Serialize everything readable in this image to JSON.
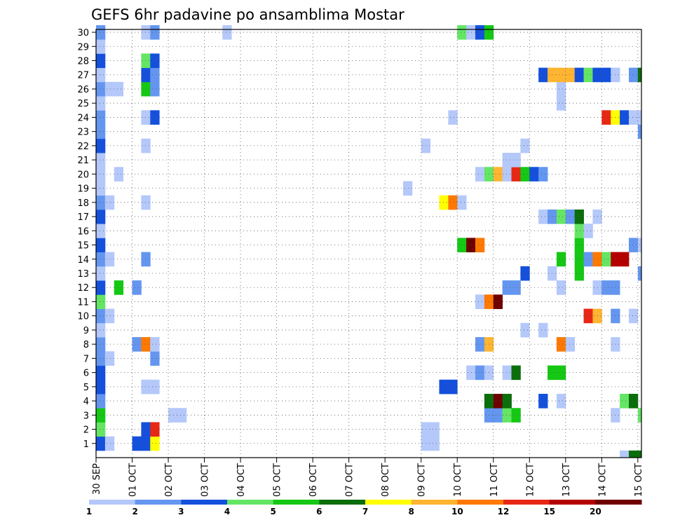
{
  "chart_data": {
    "type": "heatmap",
    "title": "GEFS 6hr padavine po ansamblima Mostar",
    "x_tick_labels": [
      "30 SEP",
      "01 OCT",
      "02 OCT",
      "03 OCT",
      "04 OCT",
      "05 OCT",
      "06 OCT",
      "07 OCT",
      "08 OCT",
      "09 OCT",
      "10 OCT",
      "11 OCT",
      "12 OCT",
      "13 OCT",
      "14 OCT",
      "15 OCT"
    ],
    "y_tick_labels": [
      1,
      2,
      3,
      4,
      5,
      6,
      7,
      8,
      9,
      10,
      11,
      12,
      13,
      14,
      15,
      16,
      17,
      18,
      19,
      20,
      21,
      22,
      23,
      24,
      25,
      26,
      27,
      28,
      29,
      30
    ],
    "ylim": [
      0,
      30
    ],
    "steps_per_day": 4,
    "grid": true,
    "legend_position": "bottom",
    "legend": {
      "labels": [
        "1",
        "2",
        "3",
        "4",
        "5",
        "6",
        "7",
        "8",
        "10",
        "12",
        "15",
        "20"
      ],
      "colors": [
        "#b4c8fa",
        "#6496f0",
        "#1450dc",
        "#64e664",
        "#14c814",
        "#0a6e0a",
        "#ffff00",
        "#ffb432",
        "#ff7800",
        "#e62814",
        "#b40000",
        "#6e0000"
      ]
    },
    "cells": [
      [
        "30 SEP",
        1
      ],
      [
        "01 OCT",
        2
      ],
      [
        "02 OCT",
        3
      ],
      [
        "03 OCT",
        4
      ],
      [
        "04 OCT",
        5
      ],
      [
        "05 OCT",
        6
      ],
      [
        "06 OCT",
        7
      ],
      [
        "07 OCT",
        8
      ],
      [
        "08 OCT",
        10
      ],
      [
        "09 OCT",
        12
      ],
      [
        "10 OCT",
        15
      ],
      [
        "11 OCT",
        20
      ]
    ],
    "data": [
      [
        0,
        1,
        "#1450dc"
      ],
      [
        0,
        2,
        "#64e664"
      ],
      [
        0,
        3,
        "#14c814"
      ],
      [
        0,
        4,
        "#6496f0"
      ],
      [
        0,
        5,
        "#1450dc"
      ],
      [
        0,
        6,
        "#1450dc"
      ],
      [
        0,
        7,
        "#6496f0"
      ],
      [
        0,
        8,
        "#6496f0"
      ],
      [
        0,
        9,
        "#b4c8fa"
      ],
      [
        0,
        10,
        "#6496f0"
      ],
      [
        0,
        11,
        "#64e664"
      ],
      [
        0,
        12,
        "#1450dc"
      ],
      [
        0,
        13,
        "#b4c8fa"
      ],
      [
        0,
        14,
        "#6496f0"
      ],
      [
        0,
        15,
        "#1450dc"
      ],
      [
        0,
        16,
        "#b4c8fa"
      ],
      [
        0,
        17,
        "#1450dc"
      ],
      [
        0,
        18,
        "#6496f0"
      ],
      [
        0,
        19,
        "#b4c8fa"
      ],
      [
        0,
        20,
        "#b4c8fa"
      ],
      [
        0,
        21,
        "#b4c8fa"
      ],
      [
        0,
        22,
        "#1450dc"
      ],
      [
        0,
        23,
        "#6496f0"
      ],
      [
        0,
        24,
        "#6496f0"
      ],
      [
        0,
        25,
        "#b4c8fa"
      ],
      [
        0,
        26,
        "#6496f0"
      ],
      [
        0,
        27,
        "#b4c8fa"
      ],
      [
        0,
        28,
        "#1450dc"
      ],
      [
        0,
        29,
        "#b4c8fa"
      ],
      [
        0,
        30,
        "#6496f0"
      ],
      [
        1,
        1,
        "#b4c8fa"
      ],
      [
        1,
        7,
        "#b4c8fa"
      ],
      [
        1,
        10,
        "#b4c8fa"
      ],
      [
        1,
        14,
        "#b4c8fa"
      ],
      [
        1,
        18,
        "#b4c8fa"
      ],
      [
        1,
        26,
        "#b4c8fa"
      ],
      [
        2,
        12,
        "#14c814"
      ],
      [
        2,
        20,
        "#b4c8fa"
      ],
      [
        2,
        26,
        "#b4c8fa"
      ],
      [
        4,
        1,
        "#1450dc"
      ],
      [
        4,
        8,
        "#6496f0"
      ],
      [
        4,
        12,
        "#6496f0"
      ],
      [
        5,
        1,
        "#1450dc"
      ],
      [
        5,
        2,
        "#1450dc"
      ],
      [
        5,
        5,
        "#b4c8fa"
      ],
      [
        5,
        8,
        "#ff7800"
      ],
      [
        5,
        14,
        "#6496f0"
      ],
      [
        5,
        18,
        "#b4c8fa"
      ],
      [
        5,
        22,
        "#b4c8fa"
      ],
      [
        5,
        24,
        "#b4c8fa"
      ],
      [
        5,
        26,
        "#14c814"
      ],
      [
        5,
        27,
        "#1450dc"
      ],
      [
        5,
        28,
        "#64e664"
      ],
      [
        5,
        30,
        "#b4c8fa"
      ],
      [
        6,
        1,
        "#ffff00"
      ],
      [
        6,
        2,
        "#e62814"
      ],
      [
        6,
        5,
        "#b4c8fa"
      ],
      [
        6,
        7,
        "#6496f0"
      ],
      [
        6,
        8,
        "#b4c8fa"
      ],
      [
        6,
        24,
        "#1450dc"
      ],
      [
        6,
        26,
        "#6496f0"
      ],
      [
        6,
        27,
        "#6496f0"
      ],
      [
        6,
        28,
        "#1450dc"
      ],
      [
        6,
        30,
        "#6496f0"
      ],
      [
        8,
        3,
        "#b4c8fa"
      ],
      [
        9,
        3,
        "#b4c8fa"
      ],
      [
        14,
        30,
        "#b4c8fa"
      ],
      [
        34,
        19,
        "#b4c8fa"
      ],
      [
        36,
        1,
        "#b4c8fa"
      ],
      [
        36,
        2,
        "#b4c8fa"
      ],
      [
        36,
        22,
        "#b4c8fa"
      ],
      [
        37,
        1,
        "#b4c8fa"
      ],
      [
        37,
        2,
        "#b4c8fa"
      ],
      [
        38,
        5,
        "#1450dc"
      ],
      [
        38,
        18,
        "#ffff00"
      ],
      [
        39,
        5,
        "#1450dc"
      ],
      [
        39,
        18,
        "#ff7800"
      ],
      [
        39,
        24,
        "#b4c8fa"
      ],
      [
        40,
        15,
        "#14c814"
      ],
      [
        40,
        18,
        "#b4c8fa"
      ],
      [
        40,
        30,
        "#64e664"
      ],
      [
        41,
        6,
        "#b4c8fa"
      ],
      [
        41,
        15,
        "#6e0000"
      ],
      [
        41,
        30,
        "#b4c8fa"
      ],
      [
        42,
        6,
        "#6496f0"
      ],
      [
        42,
        8,
        "#6496f0"
      ],
      [
        42,
        11,
        "#b4c8fa"
      ],
      [
        42,
        15,
        "#ff7800"
      ],
      [
        42,
        20,
        "#b4c8fa"
      ],
      [
        42,
        30,
        "#1450dc"
      ],
      [
        43,
        3,
        "#6496f0"
      ],
      [
        43,
        4,
        "#0a6e0a"
      ],
      [
        43,
        6,
        "#b4c8fa"
      ],
      [
        43,
        8,
        "#ffb432"
      ],
      [
        43,
        11,
        "#ff7800"
      ],
      [
        43,
        20,
        "#64e664"
      ],
      [
        43,
        30,
        "#14c814"
      ],
      [
        44,
        3,
        "#6496f0"
      ],
      [
        44,
        4,
        "#6e0000"
      ],
      [
        44,
        11,
        "#6e0000"
      ],
      [
        44,
        20,
        "#ffb432"
      ],
      [
        45,
        3,
        "#64e664"
      ],
      [
        45,
        4,
        "#0a6e0a"
      ],
      [
        45,
        6,
        "#b4c8fa"
      ],
      [
        45,
        12,
        "#6496f0"
      ],
      [
        45,
        20,
        "#b4c8fa"
      ],
      [
        45,
        21,
        "#b4c8fa"
      ],
      [
        46,
        3,
        "#14c814"
      ],
      [
        46,
        6,
        "#0a6e0a"
      ],
      [
        46,
        12,
        "#6496f0"
      ],
      [
        46,
        20,
        "#e62814"
      ],
      [
        46,
        21,
        "#b4c8fa"
      ],
      [
        47,
        9,
        "#b4c8fa"
      ],
      [
        47,
        13,
        "#1450dc"
      ],
      [
        47,
        20,
        "#14c814"
      ],
      [
        47,
        22,
        "#b4c8fa"
      ],
      [
        48,
        20,
        "#1450dc"
      ],
      [
        49,
        4,
        "#1450dc"
      ],
      [
        49,
        9,
        "#b4c8fa"
      ],
      [
        49,
        17,
        "#b4c8fa"
      ],
      [
        49,
        20,
        "#6496f0"
      ],
      [
        49,
        27,
        "#1450dc"
      ],
      [
        50,
        6,
        "#14c814"
      ],
      [
        50,
        13,
        "#b4c8fa"
      ],
      [
        50,
        17,
        "#6496f0"
      ],
      [
        50,
        27,
        "#ffb432"
      ],
      [
        51,
        4,
        "#b4c8fa"
      ],
      [
        51,
        6,
        "#14c814"
      ],
      [
        51,
        8,
        "#ff7800"
      ],
      [
        51,
        12,
        "#b4c8fa"
      ],
      [
        51,
        14,
        "#14c814"
      ],
      [
        51,
        17,
        "#64e664"
      ],
      [
        51,
        25,
        "#b4c8fa"
      ],
      [
        51,
        26,
        "#b4c8fa"
      ],
      [
        51,
        27,
        "#ffb432"
      ],
      [
        52,
        8,
        "#b4c8fa"
      ],
      [
        52,
        17,
        "#6496f0"
      ],
      [
        52,
        27,
        "#ffb432"
      ],
      [
        53,
        13,
        "#14c814"
      ],
      [
        53,
        14,
        "#14c814"
      ],
      [
        53,
        15,
        "#14c814"
      ],
      [
        53,
        16,
        "#64e664"
      ],
      [
        53,
        17,
        "#0a6e0a"
      ],
      [
        53,
        27,
        "#1450dc"
      ],
      [
        54,
        10,
        "#e62814"
      ],
      [
        54,
        14,
        "#6496f0"
      ],
      [
        54,
        16,
        "#b4c8fa"
      ],
      [
        54,
        27,
        "#64e664"
      ],
      [
        55,
        10,
        "#ffb432"
      ],
      [
        55,
        12,
        "#b4c8fa"
      ],
      [
        55,
        14,
        "#ff7800"
      ],
      [
        55,
        17,
        "#b4c8fa"
      ],
      [
        55,
        27,
        "#1450dc"
      ],
      [
        56,
        12,
        "#6496f0"
      ],
      [
        56,
        14,
        "#64e664"
      ],
      [
        56,
        24,
        "#e62814"
      ],
      [
        56,
        27,
        "#1450dc"
      ],
      [
        57,
        3,
        "#b4c8fa"
      ],
      [
        57,
        8,
        "#b4c8fa"
      ],
      [
        57,
        10,
        "#6496f0"
      ],
      [
        57,
        12,
        "#6496f0"
      ],
      [
        57,
        14,
        "#b40000"
      ],
      [
        57,
        24,
        "#ffff00"
      ],
      [
        57,
        27,
        "#b4c8fa"
      ],
      [
        58,
        0,
        "#b4c8fa"
      ],
      [
        58,
        4,
        "#64e664"
      ],
      [
        58,
        14,
        "#b40000"
      ],
      [
        58,
        24,
        "#1450dc"
      ],
      [
        59,
        0,
        "#0a6e0a"
      ],
      [
        59,
        4,
        "#0a6e0a"
      ],
      [
        59,
        10,
        "#b4c8fa"
      ],
      [
        59,
        15,
        "#6496f0"
      ],
      [
        59,
        24,
        "#b4c8fa"
      ],
      [
        59,
        27,
        "#6496f0"
      ],
      [
        60,
        0,
        "#0a6e0a"
      ],
      [
        60,
        3,
        "#64e664"
      ],
      [
        60,
        13,
        "#6496f0"
      ],
      [
        60,
        15,
        "#b4c8fa"
      ],
      [
        60,
        23,
        "#6496f0"
      ],
      [
        60,
        24,
        "#b4c8fa"
      ],
      [
        60,
        27,
        "#0a6e0a"
      ],
      [
        61,
        0,
        "#0a6e0a"
      ],
      [
        61,
        3,
        "#b4c8fa"
      ],
      [
        61,
        5,
        "#e62814"
      ],
      [
        61,
        9,
        "#6496f0"
      ],
      [
        61,
        13,
        "#6496f0"
      ],
      [
        61,
        24,
        "#b4c8fa"
      ],
      [
        61,
        27,
        "#b4c8fa"
      ]
    ]
  }
}
